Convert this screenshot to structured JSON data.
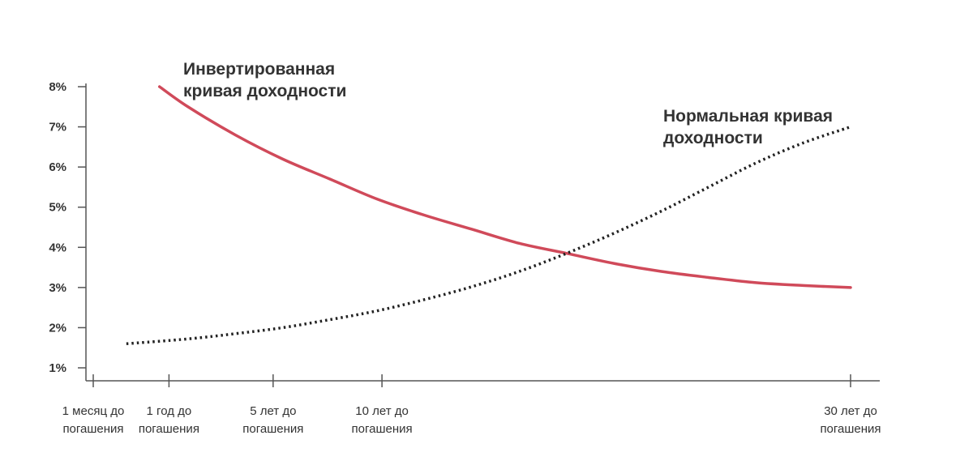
{
  "chart_data": {
    "type": "line",
    "title": "",
    "xlabel": "",
    "ylabel": "",
    "categories": [
      [
        "1 месяц до",
        "погашения"
      ],
      [
        "1 год до",
        "погашения"
      ],
      [
        "5 лет до",
        "погашения"
      ],
      [
        "10 лет до",
        "погашения"
      ],
      [
        "30 лет до",
        "погашения"
      ]
    ],
    "y_ticks": [
      "1%",
      "2%",
      "3%",
      "4%",
      "5%",
      "6%",
      "7%",
      "8%"
    ],
    "ylim": [
      1,
      8
    ],
    "grid": false,
    "series": [
      {
        "name": [
          "Инвертированная",
          "кривая доходности"
        ],
        "color": "#d04a5a",
        "style": "solid",
        "points": [
          {
            "x": 0.7,
            "y": 8.0
          },
          {
            "x": 1.0,
            "y": 7.5
          },
          {
            "x": 1.5,
            "y": 6.8
          },
          {
            "x": 2.0,
            "y": 6.2
          },
          {
            "x": 2.5,
            "y": 5.7
          },
          {
            "x": 3.0,
            "y": 5.2
          },
          {
            "x": 3.5,
            "y": 4.8
          },
          {
            "x": 4.0,
            "y": 4.45
          },
          {
            "x": 4.5,
            "y": 4.1
          },
          {
            "x": 5.0,
            "y": 3.85
          },
          {
            "x": 5.5,
            "y": 3.6
          },
          {
            "x": 6.0,
            "y": 3.4
          },
          {
            "x": 6.5,
            "y": 3.25
          },
          {
            "x": 7.0,
            "y": 3.12
          },
          {
            "x": 7.5,
            "y": 3.05
          },
          {
            "x": 8.0,
            "y": 3.0
          }
        ]
      },
      {
        "name": [
          "Нормальная кривая",
          "доходности"
        ],
        "color": "#222222",
        "style": "dotted",
        "points": [
          {
            "x": 0.35,
            "y": 1.6
          },
          {
            "x": 1.0,
            "y": 1.72
          },
          {
            "x": 1.5,
            "y": 1.85
          },
          {
            "x": 2.0,
            "y": 2.0
          },
          {
            "x": 2.5,
            "y": 2.2
          },
          {
            "x": 3.0,
            "y": 2.42
          },
          {
            "x": 3.5,
            "y": 2.7
          },
          {
            "x": 4.0,
            "y": 3.02
          },
          {
            "x": 4.5,
            "y": 3.4
          },
          {
            "x": 5.0,
            "y": 3.85
          },
          {
            "x": 5.5,
            "y": 4.35
          },
          {
            "x": 6.0,
            "y": 4.9
          },
          {
            "x": 6.5,
            "y": 5.5
          },
          {
            "x": 7.0,
            "y": 6.1
          },
          {
            "x": 7.5,
            "y": 6.6
          },
          {
            "x": 8.0,
            "y": 7.0
          }
        ]
      }
    ],
    "category_positions": [
      0,
      0.8,
      1.9,
      3.05,
      8.0
    ]
  }
}
